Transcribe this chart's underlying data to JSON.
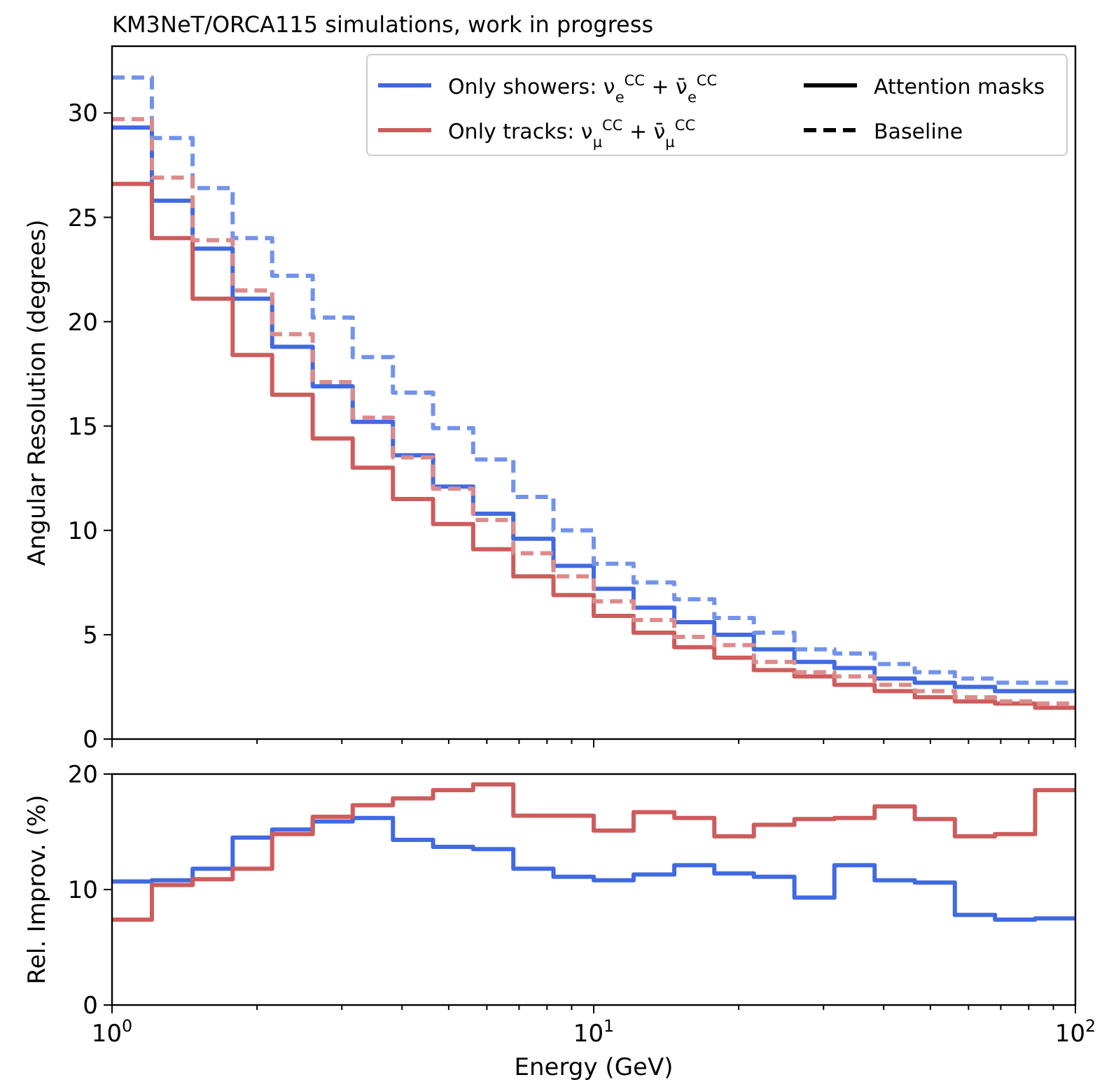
{
  "chart_data": [
    {
      "type": "histogram",
      "title": "KM3NeT/ORCA115 simulations, work in progress",
      "ylabel": "Angular Resolution (degrees)",
      "log": "x",
      "legend": "top right",
      "tick_labels": "y",
      "annotations": [
        "Attention masks",
        "Baseline"
      ],
      "bins": [
        1,
        1.21,
        1.47,
        1.78,
        2.15,
        2.61,
        3.16,
        3.83,
        4.64,
        5.62,
        6.81,
        8.25,
        10,
        12.1,
        14.7,
        17.8,
        21.5,
        26.1,
        31.6,
        38.3,
        46.4,
        56.2,
        68.1,
        82.5,
        100
      ],
      "xlim": [
        1,
        100
      ],
      "ylim": [
        0,
        33.2
      ],
      "yticks": [
        0,
        5,
        10,
        15,
        20,
        25,
        30
      ],
      "xticks": [
        {
          "value": 1,
          "label": null
        },
        {
          "value": 2,
          "label": null
        },
        {
          "value": 3,
          "label": null
        },
        {
          "value": 4,
          "label": null
        },
        {
          "value": 5,
          "label": null
        },
        {
          "value": 6,
          "label": null
        },
        {
          "value": 7,
          "label": null
        },
        {
          "value": 8,
          "label": null
        },
        {
          "value": 9,
          "label": null
        },
        {
          "value": 10,
          "label": null
        },
        {
          "value": 20,
          "label": null
        },
        {
          "value": 30,
          "label": null
        },
        {
          "value": 40,
          "label": null
        },
        {
          "value": 50,
          "label": null
        },
        {
          "value": 60,
          "label": null
        },
        {
          "value": 70,
          "label": null
        },
        {
          "value": 80,
          "label": null
        },
        {
          "value": 90,
          "label": null
        },
        {
          "value": 100,
          "label": null
        }
      ],
      "series": [
        {
          "name": "Only showers: ν$_{e}$$^{CC}$ + ν̄$_{e}$$^{CC}$",
          "color": "#4169e1",
          "line_style": "solid",
          "values": [
            29.3,
            25.8,
            23.5,
            21.1,
            18.8,
            16.9,
            15.2,
            13.6,
            12.1,
            10.8,
            9.6,
            8.3,
            7.2,
            6.3,
            5.6,
            5.0,
            4.3,
            3.7,
            3.4,
            2.9,
            2.7,
            2.5,
            2.3,
            2.3
          ]
        },
        {
          "name": "Only tracks: ν$_{μ}$$^{CC}$ + ν̄$_{μ}$$^{CC}$",
          "color": "#cd5c5c",
          "line_style": "solid",
          "values": [
            26.6,
            24.0,
            21.1,
            18.4,
            16.5,
            14.4,
            13.0,
            11.5,
            10.3,
            9.1,
            7.8,
            6.9,
            5.9,
            5.1,
            4.4,
            3.9,
            3.3,
            3.0,
            2.6,
            2.3,
            2.0,
            1.8,
            1.7,
            1.5
          ]
        },
        {
          "color": "#7393ea",
          "line_style": "dashed",
          "values": [
            31.7,
            28.8,
            26.4,
            24.0,
            22.2,
            20.2,
            18.3,
            16.6,
            14.9,
            13.4,
            11.6,
            10.0,
            8.4,
            7.5,
            6.7,
            5.8,
            5.1,
            4.3,
            4.1,
            3.6,
            3.2,
            2.9,
            2.7,
            2.7
          ]
        },
        {
          "color": "#dc8b8b",
          "line_style": "dashed",
          "values": [
            29.7,
            26.9,
            23.9,
            21.5,
            19.4,
            17.1,
            15.4,
            13.5,
            12.0,
            10.5,
            8.9,
            7.8,
            6.6,
            5.7,
            4.9,
            4.5,
            3.7,
            3.2,
            3.0,
            2.6,
            2.3,
            2.0,
            1.8,
            1.7
          ]
        }
      ]
    },
    {
      "type": "histogram",
      "xlabel": "Energy (GeV)",
      "ylabel": "Rel. Improv. (%)",
      "log": "x",
      "bins": [
        1,
        1.21,
        1.47,
        1.78,
        2.15,
        2.61,
        3.16,
        3.83,
        4.64,
        5.62,
        6.81,
        8.25,
        10,
        12.1,
        14.7,
        17.8,
        21.5,
        26.1,
        31.6,
        38.3,
        46.4,
        56.2,
        68.1,
        82.5,
        100
      ],
      "xlim": [
        1,
        100
      ],
      "ylim": [
        0,
        20
      ],
      "yticks": [
        0,
        10,
        20
      ],
      "xticks": [
        {
          "value": 1,
          "label": "10$^{0}$"
        },
        {
          "value": 2,
          "label": null
        },
        {
          "value": 3,
          "label": null
        },
        {
          "value": 4,
          "label": null
        },
        {
          "value": 5,
          "label": null
        },
        {
          "value": 6,
          "label": null
        },
        {
          "value": 7,
          "label": null
        },
        {
          "value": 8,
          "label": null
        },
        {
          "value": 9,
          "label": null
        },
        {
          "value": 10,
          "label": "10$^{1}$"
        },
        {
          "value": 20,
          "label": null
        },
        {
          "value": 30,
          "label": null
        },
        {
          "value": 40,
          "label": null
        },
        {
          "value": 50,
          "label": null
        },
        {
          "value": 60,
          "label": null
        },
        {
          "value": 70,
          "label": null
        },
        {
          "value": 80,
          "label": null
        },
        {
          "value": 90,
          "label": null
        },
        {
          "value": 100,
          "label": "10$^{2}$"
        }
      ],
      "series": [
        {
          "color": "#4169e1",
          "line_style": "solid",
          "values": [
            10.7,
            10.8,
            11.8,
            14.5,
            15.2,
            15.9,
            16.2,
            14.3,
            13.7,
            13.5,
            11.8,
            11.1,
            10.8,
            11.3,
            12.1,
            11.4,
            11.1,
            9.3,
            12.1,
            10.8,
            10.6,
            7.8,
            7.4,
            7.5
          ]
        },
        {
          "color": "#cd5c5c",
          "line_style": "solid",
          "values": [
            7.4,
            10.4,
            10.9,
            11.8,
            14.8,
            16.3,
            17.3,
            17.9,
            18.6,
            19.1,
            16.4,
            16.4,
            15.1,
            16.7,
            16.2,
            14.6,
            15.6,
            16.1,
            16.2,
            17.2,
            16.1,
            14.6,
            14.8,
            18.6
          ]
        }
      ]
    }
  ]
}
